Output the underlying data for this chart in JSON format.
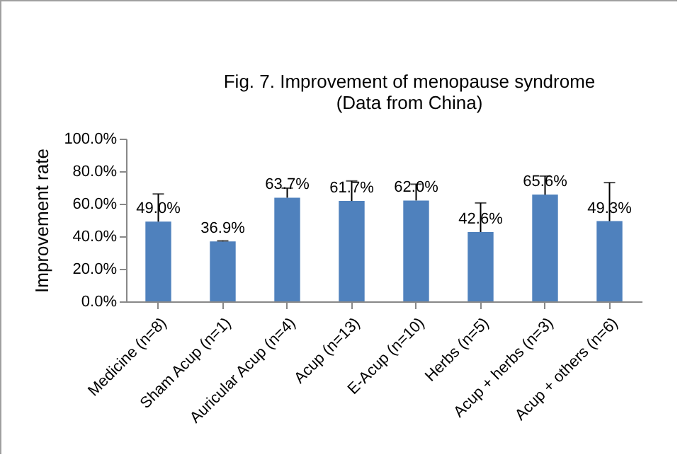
{
  "chart_data": {
    "type": "bar",
    "title": "Fig. 7. Improvement  of menopause syndrome\n(Data from China)",
    "ylabel": "Improvement rate",
    "categories": [
      "Medicine (n=8)",
      "Sham Acup (n=1)",
      "Auricular Acup (n=4)",
      "Acup (n=13)",
      "E-Acup (n=10)",
      "Herbs (n=5)",
      "Acup + herbs (n=3)",
      "Acup + others (n=6)"
    ],
    "values": [
      49.0,
      36.9,
      63.7,
      61.7,
      62.0,
      42.6,
      65.6,
      49.3
    ],
    "value_labels": [
      "49.0%",
      "36.9%",
      "63.7%",
      "61.7%",
      "62.0%",
      "42.6%",
      "65.6%",
      "49.3%"
    ],
    "errors": [
      [
        49.0,
        66
      ],
      [
        36.9,
        37.2
      ],
      [
        63.7,
        69.6
      ],
      [
        61.7,
        74
      ],
      [
        62.0,
        72
      ],
      [
        42.6,
        60.5
      ],
      [
        65.6,
        77
      ],
      [
        49.3,
        73
      ]
    ],
    "color": "#4f81bd",
    "ylim": [
      0,
      100
    ],
    "yticks": [
      {
        "value": 0,
        "label": "0.0%"
      },
      {
        "value": 20,
        "label": "20.0%"
      },
      {
        "value": 40,
        "label": "40.0%"
      },
      {
        "value": 60,
        "label": "60.0%"
      },
      {
        "value": 80,
        "label": "80.0%"
      },
      {
        "value": 100,
        "label": "100.0%"
      }
    ],
    "grid": false
  }
}
